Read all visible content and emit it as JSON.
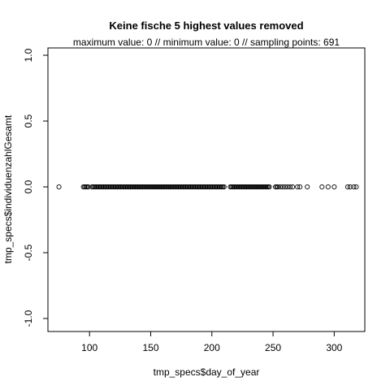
{
  "chart_data": {
    "type": "scatter",
    "title": "Keine fische  5 highest values removed",
    "subtitle": "maximum value: 0  //  minimum value: 0  // sampling points: 691",
    "xlabel": "tmp_specs$day_of_year",
    "ylabel": "tmp_specs$individuenzahlGesamt",
    "xlim": [
      66,
      325
    ],
    "ylim": [
      -1.0,
      1.0
    ],
    "xticks": [
      100,
      150,
      200,
      250,
      300
    ],
    "yticks": [
      -1.0,
      -0.5,
      0.0,
      0.5,
      1.0
    ],
    "xtick_labels": [
      "100",
      "150",
      "200",
      "250",
      "300"
    ],
    "ytick_labels": [
      "-1.0",
      "-0.5",
      "0.0",
      "0.5",
      "1.0"
    ],
    "grid": false,
    "marker": "open-circle",
    "x": [
      75,
      95,
      96,
      97,
      98,
      99,
      102,
      103,
      104,
      105,
      106,
      107,
      108,
      109,
      110,
      111,
      112,
      113,
      114,
      115,
      116,
      117,
      118,
      119,
      120,
      121,
      122,
      123,
      124,
      125,
      126,
      127,
      128,
      129,
      130,
      131,
      132,
      133,
      134,
      135,
      136,
      137,
      138,
      139,
      140,
      141,
      142,
      143,
      144,
      145,
      146,
      147,
      148,
      149,
      150,
      151,
      152,
      153,
      154,
      155,
      156,
      157,
      158,
      159,
      160,
      161,
      162,
      163,
      164,
      165,
      166,
      167,
      168,
      169,
      170,
      171,
      172,
      173,
      174,
      175,
      176,
      177,
      178,
      179,
      180,
      181,
      182,
      183,
      184,
      185,
      186,
      187,
      188,
      189,
      190,
      191,
      192,
      193,
      194,
      195,
      196,
      197,
      198,
      199,
      200,
      201,
      202,
      203,
      204,
      205,
      206,
      207,
      208,
      209,
      210,
      215,
      216,
      217,
      218,
      219,
      220,
      221,
      222,
      223,
      224,
      225,
      226,
      227,
      228,
      229,
      230,
      231,
      232,
      233,
      234,
      235,
      236,
      237,
      238,
      239,
      240,
      241,
      242,
      243,
      244,
      245,
      246,
      247,
      252,
      253,
      254,
      256,
      258,
      260,
      262,
      264,
      266,
      270,
      272,
      278,
      290,
      295,
      300,
      311,
      313,
      316,
      318
    ],
    "y_value": 0
  }
}
